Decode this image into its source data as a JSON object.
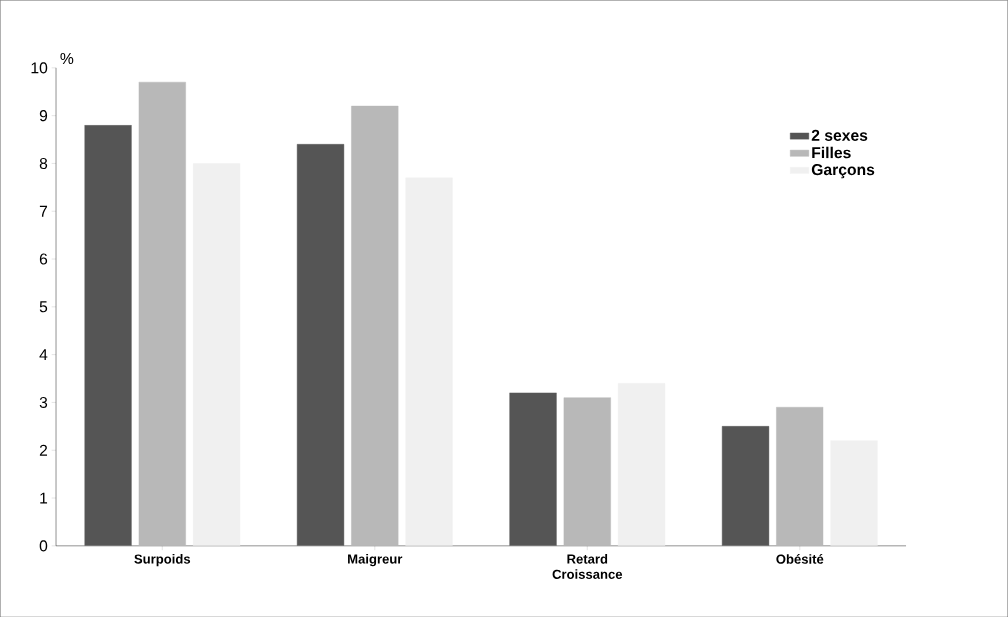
{
  "chart_data": {
    "type": "bar",
    "ylabel": "%",
    "categories": [
      "Surpoids",
      "Maigreur",
      "Retard Croissance",
      "Obésité"
    ],
    "series": [
      {
        "name": "2 sexes",
        "color": "#555555",
        "values": [
          8.8,
          8.4,
          3.2,
          2.5
        ]
      },
      {
        "name": "Filles",
        "color": "#b8b8b8",
        "values": [
          9.7,
          9.2,
          3.1,
          2.9
        ]
      },
      {
        "name": "Garçons",
        "color": "#f0f0f0",
        "values": [
          8.0,
          7.7,
          3.4,
          2.2
        ]
      }
    ],
    "ylim": [
      0,
      10
    ],
    "yticks": [
      0,
      1,
      2,
      3,
      4,
      5,
      6,
      7,
      8,
      9,
      10
    ],
    "grid": false,
    "legend": "top right"
  }
}
